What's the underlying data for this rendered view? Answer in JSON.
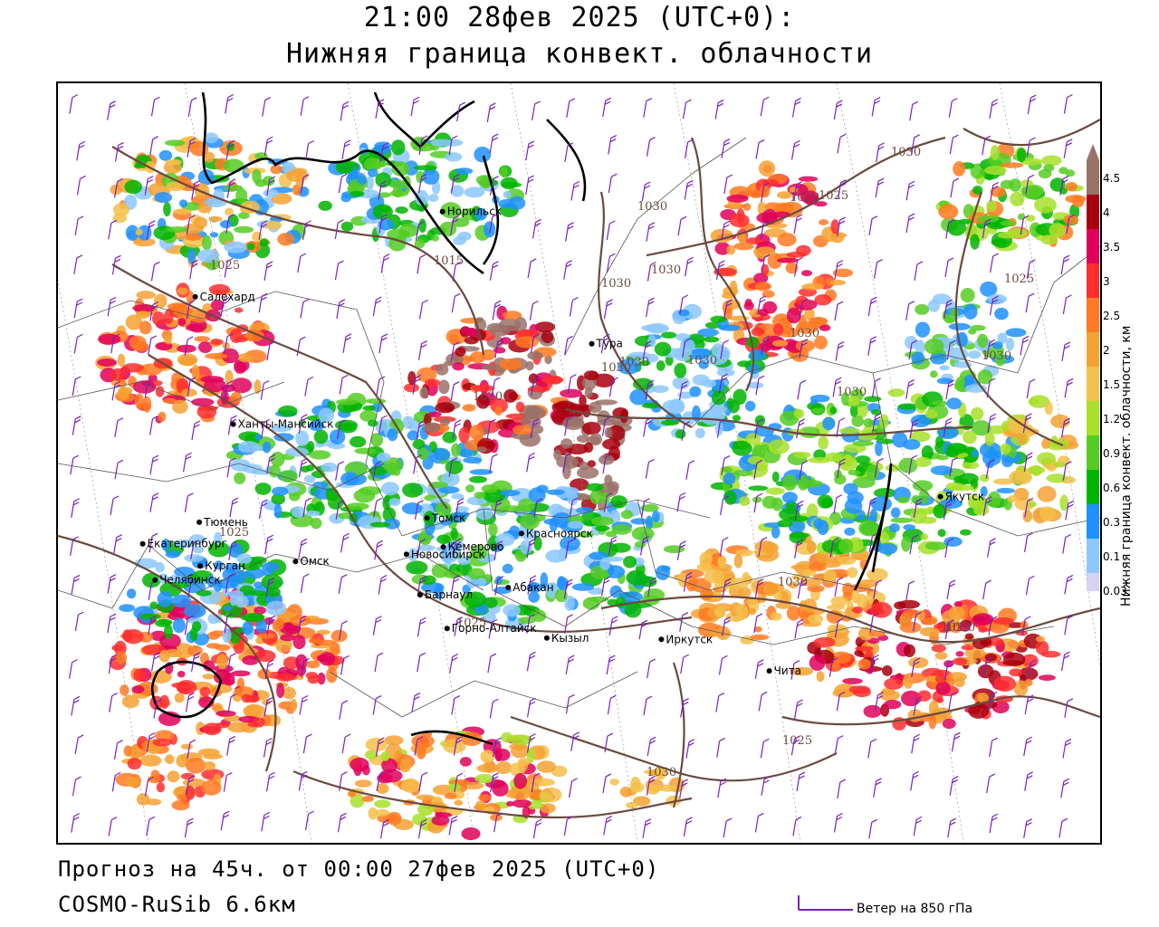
{
  "header": {
    "time_line": "21:00 28фев 2025 (UTC+0):",
    "product": "Нижняя граница конвект. облачности"
  },
  "footer": {
    "forecast": "Прогноз на 45ч. от 00:00 27фев 2025 (UTC+0)",
    "model": "COSMO-RuSib 6.6км",
    "wind_legend": "Ветер на 850 гПа"
  },
  "legend": {
    "title": "Нижняя граница конвект. облачности, км",
    "levels": [
      {
        "label": "4.5",
        "color": "#9a7268"
      },
      {
        "label": "4",
        "color": "#a8000e"
      },
      {
        "label": "3.5",
        "color": "#e0005a"
      },
      {
        "label": "3",
        "color": "#ff2e2e"
      },
      {
        "label": "2.5",
        "color": "#ff7a22"
      },
      {
        "label": "2",
        "color": "#f5a233"
      },
      {
        "label": "1.5",
        "color": "#f5c04a"
      },
      {
        "label": "1.2",
        "color": "#a8e02a"
      },
      {
        "label": "0.9",
        "color": "#55cc22"
      },
      {
        "label": "0.6",
        "color": "#00b400"
      },
      {
        "label": "0.3",
        "color": "#1e90ff"
      },
      {
        "label": "0.1",
        "color": "#8cc8ff"
      },
      {
        "label": "0.03",
        "color": "#d8d2f0"
      }
    ]
  },
  "cities": [
    {
      "name": "Норильск",
      "lon": 88.2,
      "lat": 69.3
    },
    {
      "name": "Якутск",
      "lon": 129.7,
      "lat": 62.0
    },
    {
      "name": "Салехард",
      "lon": 66.6,
      "lat": 66.5
    },
    {
      "name": "Тура",
      "lon": 100.2,
      "lat": 64.3
    },
    {
      "name": "Ханты-Мансийск",
      "lon": 69.0,
      "lat": 61.0
    },
    {
      "name": "Екатеринбург",
      "lon": 60.6,
      "lat": 56.8
    },
    {
      "name": "Тюмень",
      "lon": 65.5,
      "lat": 57.2
    },
    {
      "name": "Челябинск",
      "lon": 61.4,
      "lat": 55.2
    },
    {
      "name": "Курган",
      "lon": 65.3,
      "lat": 55.4
    },
    {
      "name": "Томск",
      "lon": 84.9,
      "lat": 56.5
    },
    {
      "name": "Красноярск",
      "lon": 92.9,
      "lat": 56.0
    },
    {
      "name": "Чита",
      "lon": 113.5,
      "lat": 52.0
    },
    {
      "name": "Омск",
      "lon": 73.4,
      "lat": 55.0
    },
    {
      "name": "Новосибирск",
      "lon": 82.9,
      "lat": 55.0
    },
    {
      "name": "Кемерово",
      "lon": 86.1,
      "lat": 55.3
    },
    {
      "name": "Абакан",
      "lon": 91.4,
      "lat": 53.7
    },
    {
      "name": "Иркутск",
      "lon": 104.3,
      "lat": 52.3
    },
    {
      "name": "Барнаул",
      "lon": 83.8,
      "lat": 53.3
    },
    {
      "name": "Горно-Алтайск",
      "lon": 85.9,
      "lat": 51.9
    },
    {
      "name": "Кызыл",
      "lon": 94.4,
      "lat": 51.7
    }
  ],
  "isobar_labels": [
    "1030",
    "1020",
    "1025",
    "1030",
    "1030",
    "1030",
    "1030",
    "1020",
    "1030",
    "1030",
    "1025",
    "1030",
    "1030",
    "1025",
    "1030",
    "1025",
    "1025",
    "1030",
    "1030",
    "1025",
    "1030",
    "1025",
    "1015"
  ]
}
